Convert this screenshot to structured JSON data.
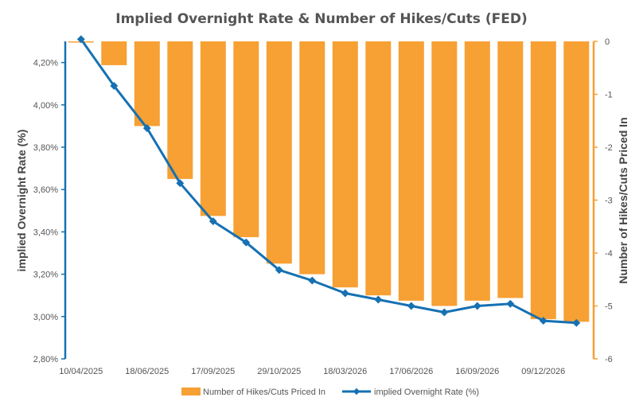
{
  "colors": {
    "bars": "#f7a034",
    "line": "#1671b3",
    "left_axis": "#1671b3",
    "right_axis": "#f7a034",
    "text": "#555555"
  },
  "chart_data": {
    "type": "bar+line",
    "title": "Implied Overnight Rate & Number of Hikes/Cuts (FED)",
    "y_left_label": "implied Overnight Rate (%)",
    "y_right_label": "Number of Hikes/Cuts Priced In",
    "y_left_range": [
      2.8,
      4.3
    ],
    "y_left_ticks": [
      "2,80%",
      "3,00%",
      "3,20%",
      "3,40%",
      "3,60%",
      "3,80%",
      "4,00%",
      "4,20%"
    ],
    "y_left_tick_values": [
      2.8,
      3.0,
      3.2,
      3.4,
      3.6,
      3.8,
      4.0,
      4.2
    ],
    "y_right_range": [
      -6,
      0
    ],
    "y_right_ticks": [
      "-6",
      "-5",
      "-4",
      "-3",
      "-2",
      "-1",
      "0"
    ],
    "y_right_tick_values": [
      -6,
      -5,
      -4,
      -3,
      -2,
      -1,
      0
    ],
    "x_tick_labels": [
      "10/04/2025",
      "18/06/2025",
      "17/09/2025",
      "29/10/2025",
      "18/03/2026",
      "17/06/2026",
      "16/09/2026",
      "09/12/2026"
    ],
    "x_tick_label_every": 2,
    "legend_position": "bottom",
    "series": [
      {
        "name": "Number of Hikes/Cuts Priced In",
        "type": "bar",
        "axis": "right",
        "values": [
          0,
          -0.45,
          -1.6,
          -2.6,
          -3.3,
          -3.7,
          -4.2,
          -4.4,
          -4.65,
          -4.8,
          -4.9,
          -5.0,
          -4.9,
          -4.85,
          -5.25,
          -5.3
        ]
      },
      {
        "name": "implied Overnight Rate (%)",
        "type": "line",
        "axis": "left",
        "values": [
          4.31,
          4.09,
          3.89,
          3.63,
          3.45,
          3.35,
          3.22,
          3.17,
          3.11,
          3.08,
          3.05,
          3.02,
          3.05,
          3.06,
          2.98,
          2.97
        ]
      }
    ]
  }
}
